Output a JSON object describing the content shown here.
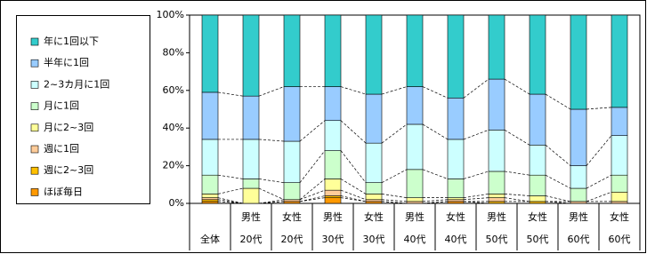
{
  "chart_data": {
    "type": "stacked_bar_100",
    "categories": [
      [
        "全体"
      ],
      [
        "男性",
        "20代"
      ],
      [
        "女性",
        "20代"
      ],
      [
        "男性",
        "30代"
      ],
      [
        "女性",
        "30代"
      ],
      [
        "男性",
        "40代"
      ],
      [
        "女性",
        "40代"
      ],
      [
        "男性",
        "50代"
      ],
      [
        "女性",
        "50代"
      ],
      [
        "男性",
        "60代"
      ],
      [
        "女性",
        "60代"
      ]
    ],
    "series": [
      {
        "name": "ほぼ毎日",
        "color": "#ff9900",
        "values": [
          1,
          0,
          1,
          3,
          1,
          0,
          1,
          0,
          0,
          0,
          0
        ]
      },
      {
        "name": "週に2~3回",
        "color": "#ffc000",
        "values": [
          1,
          0,
          0,
          1,
          0,
          0,
          0,
          1,
          1,
          0,
          0
        ]
      },
      {
        "name": "週に1回",
        "color": "#ffcc99",
        "values": [
          1,
          0,
          1,
          3,
          1,
          1,
          1,
          2,
          0,
          1,
          1
        ]
      },
      {
        "name": "月に2~3回",
        "color": "#ffff99",
        "values": [
          2,
          8,
          0,
          6,
          3,
          2,
          1,
          2,
          3,
          0,
          5
        ]
      },
      {
        "name": "月に1回",
        "color": "#ccffcc",
        "values": [
          10,
          5,
          9,
          15,
          6,
          15,
          10,
          12,
          11,
          7,
          9
        ]
      },
      {
        "name": "2~3カ月に1回",
        "color": "#ccffff",
        "values": [
          19,
          21,
          22,
          16,
          21,
          24,
          21,
          22,
          16,
          12,
          21
        ]
      },
      {
        "name": "半年に1回",
        "color": "#99ccff",
        "values": [
          25,
          23,
          29,
          18,
          26,
          20,
          22,
          27,
          27,
          30,
          15
        ]
      },
      {
        "name": "年に1回以下",
        "color": "#33cccc",
        "values": [
          41,
          43,
          38,
          38,
          42,
          38,
          44,
          34,
          42,
          50,
          49
        ]
      }
    ],
    "ylim": [
      0,
      100
    ],
    "yticks": [
      {
        "value": 0,
        "label": "0%"
      },
      {
        "value": 20,
        "label": "20%"
      },
      {
        "value": 40,
        "label": "40%"
      },
      {
        "value": 60,
        "label": "60%"
      },
      {
        "value": 80,
        "label": "80%"
      },
      {
        "value": 100,
        "label": "100%"
      }
    ],
    "series_lines": true
  }
}
